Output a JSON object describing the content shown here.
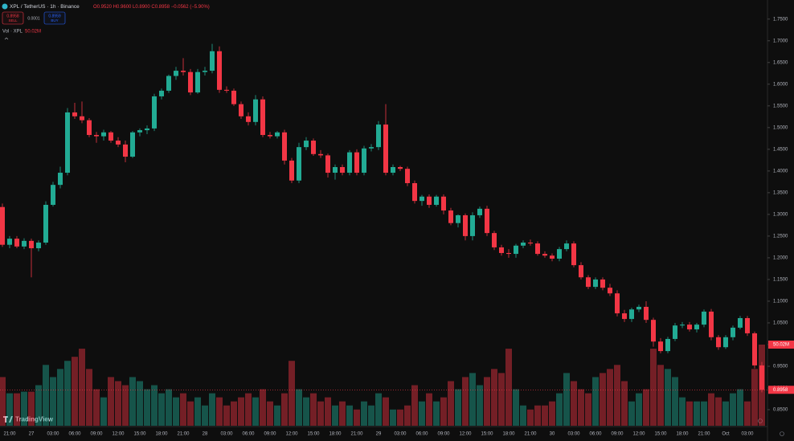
{
  "ui": {
    "ohlc_header": "O0.9520 H0.9600 L0.8900 C0.8958 −0.0562 (−5.90%)",
    "sell_price": "0.8958",
    "sell_label": "SELL",
    "spread": "0.0001",
    "buy_price": "0.8959",
    "buy_label": "BUY",
    "watermark": "TradingView"
  },
  "chart_data": {
    "type": "candlestick",
    "title": "XPL / TetherUS · 1h · Binance",
    "up_color": "#22ab94",
    "down_color": "#f23645",
    "grid": false,
    "categories": [
      null,
      "21:00",
      null,
      null,
      "27",
      null,
      null,
      "03:00",
      null,
      null,
      "06:00",
      null,
      null,
      "09:00",
      null,
      null,
      "12:00",
      null,
      null,
      "15:00",
      null,
      null,
      "18:00",
      null,
      null,
      "21:00",
      null,
      null,
      "28",
      null,
      null,
      "03:00",
      null,
      null,
      "06:00",
      null,
      null,
      "09:00",
      null,
      null,
      "12:00",
      null,
      null,
      "15:00",
      null,
      null,
      "18:00",
      null,
      null,
      "21:00",
      null,
      null,
      "29",
      null,
      null,
      "03:00",
      null,
      null,
      "06:00",
      null,
      null,
      "09:00",
      null,
      null,
      "12:00",
      null,
      null,
      "15:00",
      null,
      null,
      "18:00",
      null,
      null,
      "21:00",
      null,
      null,
      "30",
      null,
      null,
      "03:00",
      null,
      null,
      "06:00",
      null,
      null,
      "09:00",
      null,
      null,
      "12:00",
      null,
      null,
      "15:00",
      null,
      null,
      "18:00",
      null,
      null,
      "21:00",
      null,
      null,
      "Oct",
      null,
      null,
      "03:00",
      null,
      null
    ],
    "open": [
      1.317,
      1.23,
      1.244,
      1.226,
      1.239,
      1.222,
      1.235,
      1.322,
      1.368,
      1.396,
      1.535,
      1.526,
      1.517,
      1.483,
      1.48,
      1.489,
      1.47,
      1.461,
      1.433,
      1.489,
      1.494,
      1.498,
      1.572,
      1.585,
      1.619,
      1.631,
      1.628,
      1.581,
      1.628,
      1.631,
      1.676,
      1.587,
      1.585,
      1.554,
      1.526,
      1.513,
      1.565,
      1.483,
      1.48,
      1.489,
      1.424,
      1.378,
      1.455,
      1.47,
      1.439,
      1.436,
      1.396,
      1.409,
      1.396,
      1.443,
      1.396,
      1.452,
      1.455,
      1.507,
      1.396,
      1.409,
      1.405,
      1.372,
      1.331,
      1.341,
      1.322,
      1.341,
      1.309,
      1.28,
      1.298,
      1.25,
      1.298,
      1.313,
      1.257,
      1.224,
      1.211,
      1.209,
      1.228,
      1.235,
      1.233,
      1.209,
      1.205,
      1.198,
      1.22,
      1.233,
      1.183,
      1.155,
      1.133,
      1.15,
      1.131,
      1.118,
      1.072,
      1.059,
      1.081,
      1.087,
      1.057,
      1.007,
      0.985,
      1.013,
      1.044,
      1.046,
      1.035,
      1.046,
      1.076,
      1.017,
      0.994,
      1.017,
      1.039,
      1.061,
      1.026,
      0.952
    ],
    "high": [
      1.325,
      1.25,
      1.25,
      1.245,
      1.244,
      1.24,
      1.33,
      1.375,
      1.41,
      1.545,
      1.557,
      1.56,
      1.522,
      1.49,
      1.495,
      1.492,
      1.478,
      1.47,
      1.492,
      1.498,
      1.505,
      1.578,
      1.59,
      1.622,
      1.64,
      1.66,
      1.635,
      1.635,
      1.64,
      1.693,
      1.687,
      1.595,
      1.59,
      1.56,
      1.535,
      1.575,
      1.572,
      1.49,
      1.492,
      1.495,
      1.43,
      1.465,
      1.478,
      1.475,
      1.448,
      1.44,
      1.415,
      1.415,
      1.448,
      1.45,
      1.458,
      1.462,
      1.515,
      1.554,
      1.415,
      1.412,
      1.41,
      1.378,
      1.345,
      1.346,
      1.345,
      1.346,
      1.315,
      1.3,
      1.302,
      1.305,
      1.318,
      1.32,
      1.262,
      1.23,
      1.22,
      1.232,
      1.24,
      1.242,
      1.238,
      1.215,
      1.21,
      1.225,
      1.24,
      1.238,
      1.19,
      1.16,
      1.155,
      1.155,
      1.14,
      1.125,
      1.08,
      1.085,
      1.092,
      1.1,
      1.062,
      1.015,
      1.018,
      1.05,
      1.052,
      1.052,
      1.05,
      1.081,
      1.082,
      1.022,
      1.022,
      1.044,
      1.066,
      1.066,
      1.03,
      0.96
    ],
    "low": [
      1.225,
      1.222,
      1.222,
      1.22,
      1.155,
      1.215,
      1.23,
      1.318,
      1.36,
      1.39,
      1.52,
      1.51,
      1.478,
      1.465,
      1.47,
      1.465,
      1.455,
      1.42,
      1.43,
      1.48,
      1.485,
      1.492,
      1.565,
      1.58,
      1.61,
      1.62,
      1.575,
      1.578,
      1.62,
      1.625,
      1.58,
      1.58,
      1.55,
      1.52,
      1.505,
      1.505,
      1.478,
      1.475,
      1.475,
      1.415,
      1.372,
      1.372,
      1.448,
      1.435,
      1.43,
      1.385,
      1.38,
      1.39,
      1.39,
      1.39,
      1.39,
      1.445,
      1.448,
      1.39,
      1.39,
      1.4,
      1.365,
      1.325,
      1.32,
      1.315,
      1.318,
      1.3,
      1.275,
      1.27,
      1.24,
      1.24,
      1.292,
      1.25,
      1.218,
      1.205,
      1.2,
      1.2,
      1.222,
      1.228,
      1.205,
      1.2,
      1.192,
      1.192,
      1.215,
      1.178,
      1.15,
      1.128,
      1.128,
      1.125,
      1.112,
      1.065,
      1.052,
      1.052,
      1.075,
      1.05,
      0.995,
      0.98,
      0.98,
      1.008,
      1.038,
      1.03,
      1.028,
      1.04,
      1.01,
      0.988,
      0.99,
      1.01,
      1.035,
      1.02,
      0.945,
      0.89
    ],
    "close": [
      1.23,
      1.244,
      1.226,
      1.239,
      1.222,
      1.235,
      1.322,
      1.368,
      1.396,
      1.535,
      1.526,
      1.517,
      1.483,
      1.48,
      1.489,
      1.47,
      1.461,
      1.433,
      1.489,
      1.494,
      1.498,
      1.572,
      1.585,
      1.619,
      1.631,
      1.628,
      1.581,
      1.628,
      1.631,
      1.676,
      1.587,
      1.585,
      1.554,
      1.526,
      1.513,
      1.565,
      1.483,
      1.48,
      1.489,
      1.424,
      1.378,
      1.455,
      1.47,
      1.439,
      1.436,
      1.396,
      1.409,
      1.396,
      1.443,
      1.396,
      1.452,
      1.455,
      1.507,
      1.396,
      1.409,
      1.405,
      1.372,
      1.331,
      1.341,
      1.322,
      1.341,
      1.309,
      1.28,
      1.298,
      1.25,
      1.298,
      1.313,
      1.257,
      1.224,
      1.211,
      1.209,
      1.228,
      1.235,
      1.233,
      1.209,
      1.205,
      1.198,
      1.22,
      1.233,
      1.183,
      1.155,
      1.133,
      1.15,
      1.131,
      1.118,
      1.072,
      1.059,
      1.081,
      1.087,
      1.057,
      1.007,
      0.985,
      1.013,
      1.044,
      1.046,
      1.035,
      1.046,
      1.076,
      1.017,
      0.994,
      1.017,
      1.039,
      1.061,
      1.026,
      0.952,
      0.8958
    ],
    "ylim": [
      0.813,
      1.794
    ],
    "yticks": [
      {
        "value": 0.85,
        "label": "0.8500"
      },
      {
        "value": 0.9,
        "label": "0.9000"
      },
      {
        "value": 0.95,
        "label": "0.9500"
      },
      {
        "value": 1.0,
        "label": "1.0000"
      },
      {
        "value": 1.05,
        "label": "1.0500"
      },
      {
        "value": 1.1,
        "label": "1.1000"
      },
      {
        "value": 1.15,
        "label": "1.1500"
      },
      {
        "value": 1.2,
        "label": "1.2000"
      },
      {
        "value": 1.25,
        "label": "1.2500"
      },
      {
        "value": 1.3,
        "label": "1.3000"
      },
      {
        "value": 1.35,
        "label": "1.3500"
      },
      {
        "value": 1.4,
        "label": "1.4000"
      },
      {
        "value": 1.45,
        "label": "1.4500"
      },
      {
        "value": 1.5,
        "label": "1.5000"
      },
      {
        "value": 1.55,
        "label": "1.5500"
      },
      {
        "value": 1.6,
        "label": "1.6000"
      },
      {
        "value": 1.65,
        "label": "1.6500"
      },
      {
        "value": 1.7,
        "label": "1.7000"
      },
      {
        "value": 1.75,
        "label": "1.7500"
      }
    ],
    "volume": {
      "name": "Vol · XPL",
      "last_label": "50.02M",
      "ylim": [
        0,
        104
      ],
      "values": [
        30,
        20,
        20,
        21,
        21,
        25,
        37.5,
        30,
        35,
        40,
        42.5,
        47.5,
        35,
        22.5,
        17.5,
        30,
        27.5,
        25,
        30,
        27.5,
        22.5,
        25,
        20,
        22.5,
        17.5,
        20,
        15,
        17.5,
        12.5,
        20,
        17.5,
        12.5,
        15,
        17.5,
        20,
        17.5,
        22.5,
        15,
        12.5,
        20,
        40,
        22.5,
        17.5,
        20,
        15,
        17.5,
        12.5,
        15,
        12.5,
        10,
        15,
        12.5,
        20,
        17.5,
        10,
        10,
        12.5,
        25,
        15,
        20,
        15,
        17.5,
        27.5,
        22.5,
        30,
        32.5,
        25,
        30,
        35,
        32.5,
        47.5,
        22.5,
        12.5,
        10,
        12.5,
        12.5,
        15,
        20,
        32.5,
        27.5,
        22.5,
        20,
        30,
        32.5,
        35,
        37.5,
        27.5,
        15,
        20,
        22.5,
        47.5,
        37.5,
        35,
        30,
        17.5,
        15,
        15,
        15,
        20,
        17.5,
        15,
        20,
        22.5,
        15,
        35,
        50.02
      ]
    }
  }
}
